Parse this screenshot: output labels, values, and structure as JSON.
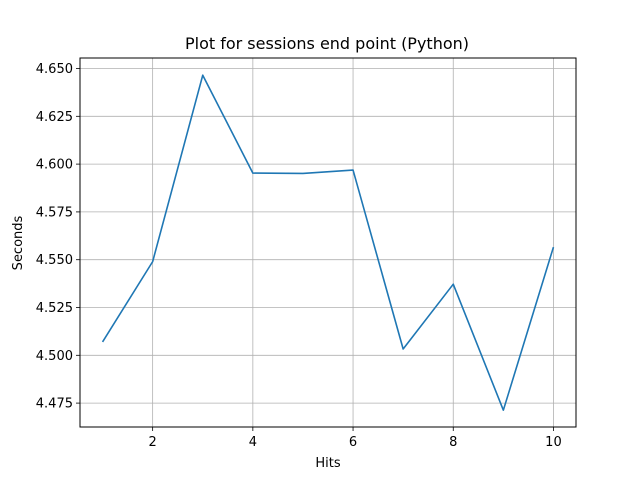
{
  "chart_data": {
    "type": "line",
    "title": "Plot for sessions end point (Python)",
    "xlabel": "Hits",
    "ylabel": "Seconds",
    "xlim": [
      0.55,
      10.45
    ],
    "ylim": [
      4.4625,
      4.6555
    ],
    "xticks": [
      2,
      4,
      6,
      8,
      10
    ],
    "xtick_labels": [
      "2",
      "4",
      "6",
      "8",
      "10"
    ],
    "yticks": [
      4.475,
      4.5,
      4.525,
      4.55,
      4.575,
      4.6,
      4.625,
      4.65
    ],
    "ytick_labels": [
      "4.475",
      "4.500",
      "4.525",
      "4.550",
      "4.575",
      "4.600",
      "4.625",
      "4.650"
    ],
    "grid": true,
    "series": [
      {
        "color": "#1f77b4",
        "x": [
          1,
          2,
          3,
          4,
          5,
          6,
          7,
          8,
          9,
          10
        ],
        "y": [
          4.507,
          4.549,
          4.6465,
          4.5953,
          4.5951,
          4.5969,
          4.5033,
          4.5372,
          4.4713,
          4.5566
        ]
      }
    ]
  }
}
